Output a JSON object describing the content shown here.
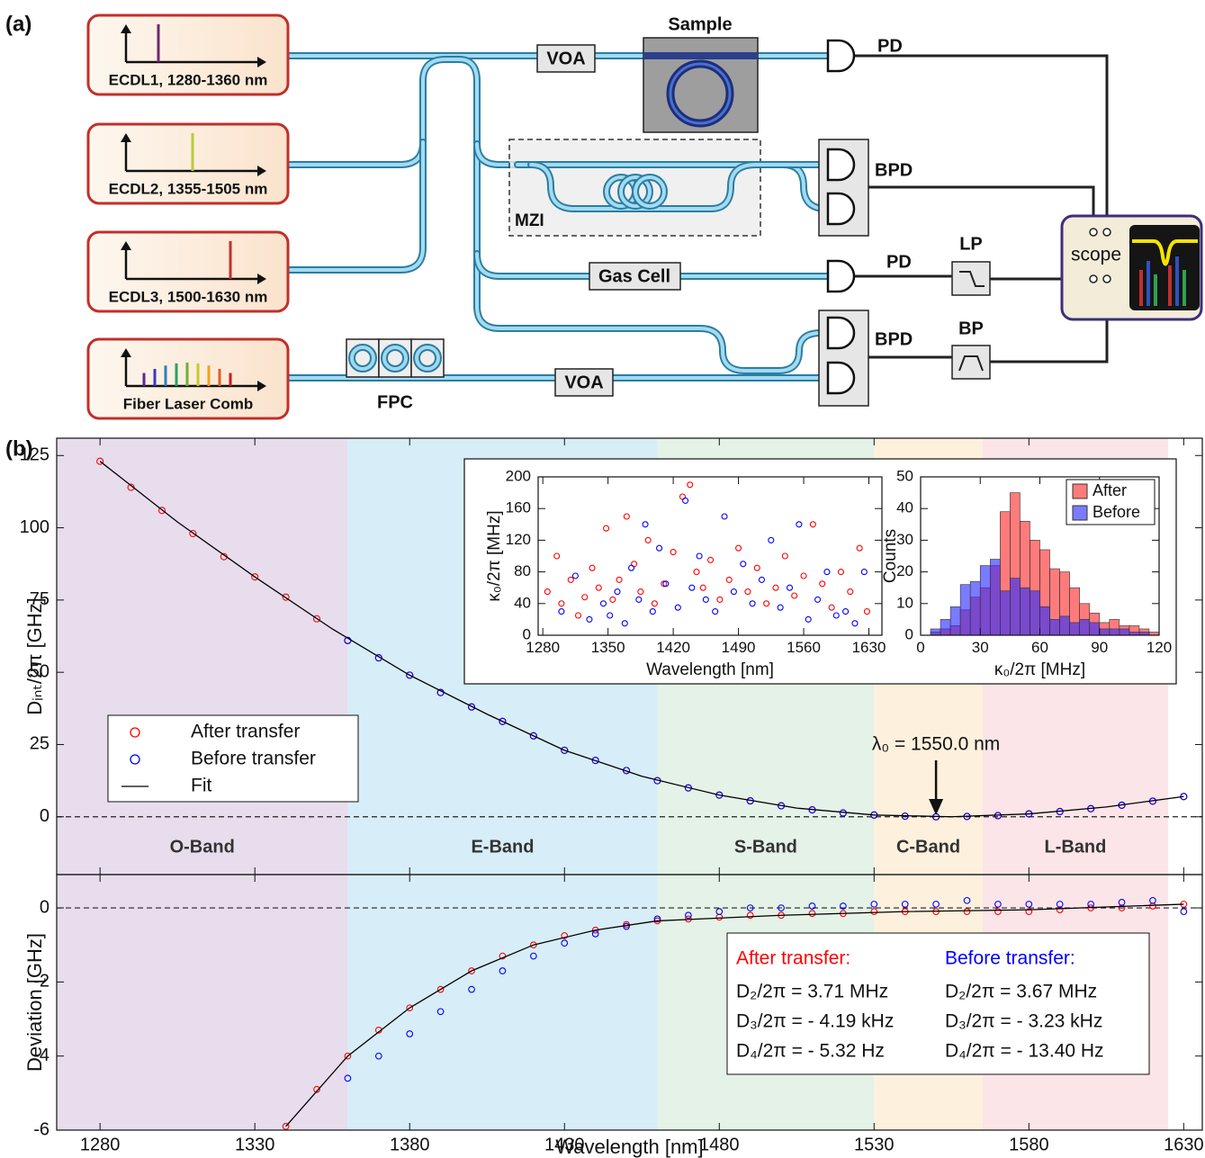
{
  "diagram": {
    "panel_label": "(a)",
    "lasers": [
      "ECDL1, 1280-1360 nm",
      "ECDL2, 1355-1505 nm",
      "ECDL3, 1500-1630 nm",
      "Fiber Laser Comb"
    ],
    "sample": "Sample",
    "voa_top": "VOA",
    "pd_top": "PD",
    "mzi": "MZI",
    "bpd_top": "BPD",
    "gas_cell": "Gas Cell",
    "pd_mid": "PD",
    "lp": "LP",
    "fpc": "FPC",
    "voa_bottom": "VOA",
    "bpd_bottom": "BPD",
    "bp": "BP",
    "scope": "scope"
  },
  "panel_b_label": "(b)",
  "chart_data": [
    {
      "type": "scatter",
      "ylabel": "Dᵢₙₜ/2π [GHz]",
      "xlim": [
        1266,
        1636
      ],
      "ylim": [
        -20,
        131
      ],
      "yticks": [
        0,
        25,
        50,
        75,
        100,
        125
      ],
      "bands": [
        {
          "name": "O-Band",
          "range": [
            1260,
            1360
          ],
          "color": "#e7dded"
        },
        {
          "name": "E-Band",
          "range": [
            1360,
            1460
          ],
          "color": "#d7edf8"
        },
        {
          "name": "S-Band",
          "range": [
            1460,
            1530
          ],
          "color": "#e4f2e7"
        },
        {
          "name": "C-Band",
          "range": [
            1530,
            1565
          ],
          "color": "#fdf1dd"
        },
        {
          "name": "L-Band",
          "range": [
            1565,
            1625
          ],
          "color": "#fbe5e8"
        }
      ],
      "legend": "center left",
      "annotation": {
        "text": "λ₀ = 1550.0 nm",
        "x": 1550
      },
      "series": [
        {
          "name": "After transfer",
          "mode": "markers",
          "color": "#ff0000",
          "x": [
            1280,
            1290,
            1300,
            1310,
            1320,
            1330,
            1340,
            1350,
            1360,
            1370,
            1380,
            1390,
            1400,
            1410,
            1420,
            1430,
            1440,
            1450,
            1460,
            1470,
            1480,
            1490,
            1500,
            1510,
            1520,
            1530,
            1540,
            1550,
            1560,
            1570,
            1580,
            1590,
            1600,
            1610,
            1620,
            1630
          ],
          "values": [
            123,
            114,
            106,
            98,
            90,
            83,
            76,
            68.5,
            61,
            55,
            49,
            43,
            38,
            33,
            28,
            23,
            19.5,
            16,
            12.5,
            10,
            7.5,
            5.5,
            3.8,
            2.4,
            1.3,
            0.6,
            0.2,
            0,
            0.1,
            0.4,
            1,
            1.8,
            2.8,
            4,
            5.4,
            7
          ]
        },
        {
          "name": "Before transfer",
          "mode": "markers",
          "color": "#0000ff",
          "x": [
            1360,
            1370,
            1380,
            1390,
            1400,
            1410,
            1420,
            1430,
            1440,
            1450,
            1460,
            1470,
            1480,
            1490,
            1500,
            1510,
            1520,
            1530,
            1540,
            1550,
            1560,
            1570,
            1580,
            1590,
            1600,
            1610,
            1620,
            1630
          ],
          "values": [
            61,
            55,
            49,
            43,
            38,
            33,
            28,
            23,
            19.5,
            16,
            12.5,
            10,
            7.5,
            5.5,
            3.8,
            2.4,
            1.3,
            0.6,
            0.2,
            0,
            0.1,
            0.4,
            1,
            1.8,
            2.8,
            4,
            5.4,
            7
          ]
        },
        {
          "name": "Fit",
          "mode": "line",
          "color": "#000000",
          "x": [
            1280,
            1305,
            1330,
            1355,
            1380,
            1405,
            1430,
            1455,
            1480,
            1505,
            1530,
            1555,
            1580,
            1605,
            1630
          ],
          "values": [
            123,
            102,
            83,
            65,
            49,
            35.5,
            23,
            14,
            7.5,
            3,
            0.6,
            0,
            1,
            3.4,
            7
          ]
        }
      ]
    },
    {
      "type": "scatter",
      "xlabel": "Wavelength [nm]",
      "ylabel": "Deviation [GHz]",
      "xlim": [
        1266,
        1636
      ],
      "ylim": [
        -6,
        0.9
      ],
      "xticks": [
        1280,
        1330,
        1380,
        1430,
        1480,
        1530,
        1580,
        1630
      ],
      "yticks": [
        -6,
        -4,
        -2,
        0
      ],
      "fit_box": [
        {
          "title": "After transfer:",
          "color": "#ff0000",
          "lines": [
            "D₂/2π = 3.71 MHz",
            "D₃/2π = - 4.19 kHz",
            "D₄/2π = - 5.32 Hz"
          ]
        },
        {
          "title": "Before transfer:",
          "color": "#0000ff",
          "lines": [
            "D₂/2π = 3.67 MHz",
            "D₃/2π = - 3.23 kHz",
            "D₄/2π = - 13.40 Hz"
          ]
        }
      ],
      "series": [
        {
          "name": "After transfer",
          "mode": "markers",
          "color": "#ff0000",
          "x": [
            1340,
            1350,
            1360,
            1370,
            1380,
            1390,
            1400,
            1410,
            1420,
            1430,
            1440,
            1450,
            1460,
            1470,
            1480,
            1490,
            1500,
            1510,
            1520,
            1530,
            1540,
            1550,
            1560,
            1570,
            1580,
            1590,
            1600,
            1610,
            1620,
            1630
          ],
          "values": [
            -5.9,
            -4.9,
            -4.0,
            -3.3,
            -2.7,
            -2.2,
            -1.7,
            -1.3,
            -1.0,
            -0.75,
            -0.6,
            -0.45,
            -0.35,
            -0.3,
            -0.25,
            -0.2,
            -0.2,
            -0.15,
            -0.15,
            -0.1,
            -0.1,
            -0.1,
            -0.1,
            -0.1,
            -0.1,
            -0.05,
            0,
            0,
            0.05,
            0.1
          ]
        },
        {
          "name": "Before transfer",
          "mode": "markers",
          "color": "#0000ff",
          "x": [
            1360,
            1370,
            1380,
            1390,
            1400,
            1410,
            1420,
            1430,
            1440,
            1450,
            1460,
            1470,
            1480,
            1490,
            1500,
            1510,
            1520,
            1530,
            1540,
            1550,
            1560,
            1570,
            1580,
            1590,
            1600,
            1610,
            1620,
            1630
          ],
          "values": [
            -4.6,
            -4.0,
            -3.4,
            -2.8,
            -2.2,
            -1.7,
            -1.3,
            -0.95,
            -0.7,
            -0.5,
            -0.3,
            -0.2,
            -0.1,
            0,
            0,
            0.05,
            0.05,
            0.1,
            0.1,
            0.1,
            0.2,
            0.1,
            0.1,
            0.1,
            0.1,
            0.15,
            0.2,
            -0.1
          ]
        },
        {
          "name": "Fit",
          "mode": "line",
          "color": "#000000",
          "x": [
            1340,
            1360,
            1380,
            1400,
            1420,
            1440,
            1460,
            1500,
            1540,
            1580,
            1630
          ],
          "values": [
            -5.9,
            -4.0,
            -2.7,
            -1.7,
            -1.0,
            -0.6,
            -0.35,
            -0.2,
            -0.1,
            -0.05,
            0.1
          ]
        }
      ]
    },
    {
      "type": "scatter",
      "xlabel": "Wavelength [nm]",
      "ylabel": "κ₀/2π [MHz]",
      "xlim": [
        1275,
        1644
      ],
      "ylim": [
        0,
        200
      ],
      "xticks": [
        1280,
        1350,
        1420,
        1490,
        1560,
        1630
      ],
      "yticks": [
        0,
        40,
        80,
        120,
        160,
        200
      ],
      "series": [
        {
          "name": "After",
          "mode": "markers",
          "color": "#ff0000",
          "x": [
            1285,
            1295,
            1300,
            1310,
            1318,
            1325,
            1333,
            1340,
            1348,
            1355,
            1362,
            1370,
            1378,
            1385,
            1393,
            1400,
            1410,
            1420,
            1430,
            1438,
            1445,
            1452,
            1460,
            1470,
            1480,
            1490,
            1500,
            1510,
            1520,
            1530,
            1540,
            1550,
            1560,
            1570,
            1580,
            1590,
            1600,
            1610,
            1620,
            1628
          ],
          "values": [
            55,
            100,
            40,
            70,
            25,
            48,
            85,
            60,
            135,
            45,
            70,
            150,
            90,
            55,
            120,
            40,
            65,
            105,
            175,
            190,
            80,
            60,
            95,
            45,
            70,
            110,
            55,
            85,
            40,
            60,
            100,
            50,
            75,
            140,
            65,
            35,
            80,
            55,
            110,
            30
          ]
        },
        {
          "name": "Before",
          "mode": "markers",
          "color": "#0000ff",
          "x": [
            1300,
            1315,
            1330,
            1345,
            1352,
            1360,
            1368,
            1375,
            1383,
            1390,
            1398,
            1405,
            1412,
            1425,
            1433,
            1440,
            1448,
            1455,
            1465,
            1475,
            1485,
            1495,
            1505,
            1515,
            1525,
            1535,
            1545,
            1555,
            1565,
            1575,
            1585,
            1595,
            1605,
            1615,
            1625
          ],
          "values": [
            30,
            75,
            20,
            40,
            25,
            55,
            15,
            85,
            45,
            140,
            30,
            110,
            65,
            35,
            170,
            60,
            100,
            45,
            30,
            150,
            55,
            90,
            40,
            70,
            120,
            35,
            60,
            140,
            20,
            45,
            80,
            25,
            30,
            15,
            80
          ]
        }
      ]
    },
    {
      "type": "histogram",
      "xlabel": "κ₀/2π [MHz]",
      "ylabel": "Counts",
      "xlim": [
        0,
        120
      ],
      "ylim": [
        0,
        50
      ],
      "xticks": [
        0,
        30,
        60,
        90,
        120
      ],
      "yticks": [
        0,
        10,
        20,
        30,
        40,
        50
      ],
      "legend": "upper right",
      "bins": [
        0,
        5,
        10,
        15,
        20,
        25,
        30,
        35,
        40,
        45,
        50,
        55,
        60,
        65,
        70,
        75,
        80,
        85,
        90,
        95,
        100,
        105,
        110,
        115,
        120
      ],
      "series": [
        {
          "name": "After",
          "color": "#ff2a2a",
          "values": [
            0,
            1,
            2,
            3,
            8,
            12,
            15,
            22,
            39,
            45,
            36,
            30,
            27,
            21,
            20,
            15,
            10,
            7,
            4,
            5,
            3,
            3,
            2,
            1
          ]
        },
        {
          "name": "Before",
          "color": "#2a2aff",
          "values": [
            0,
            2,
            5,
            9,
            16,
            17,
            22,
            24,
            14,
            18,
            15,
            14,
            9,
            5,
            6,
            4,
            5,
            4,
            2,
            2,
            2,
            1,
            1,
            0
          ]
        }
      ]
    }
  ]
}
